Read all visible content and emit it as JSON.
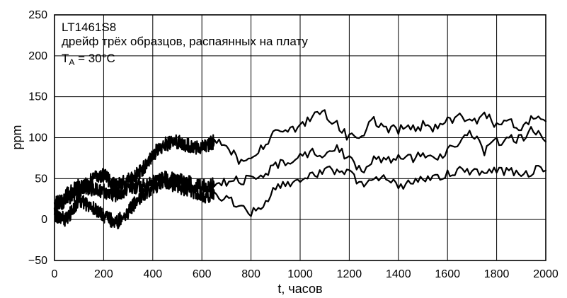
{
  "chart_data": {
    "type": "line",
    "annotations": {
      "line1": "LT1461S8",
      "line2": "дрейф трёх образцов, распаянных на плату",
      "line3_main": "T",
      "line3_sub": "A",
      "line3_rest": " = 30°C"
    },
    "xlabel": "t, часов",
    "ylabel": "ppm",
    "xlim": [
      0,
      2000
    ],
    "ylim": [
      -50,
      250
    ],
    "x_ticks": [
      0,
      200,
      400,
      600,
      800,
      1000,
      1200,
      1400,
      1600,
      1800,
      2000
    ],
    "y_ticks": [
      -50,
      0,
      50,
      100,
      150,
      200,
      250
    ],
    "x_tick_labels": [
      "0",
      "200",
      "400",
      "600",
      "800",
      "1000",
      "1200",
      "1400",
      "1600",
      "1800",
      "2000"
    ],
    "y_tick_labels": [
      "−50",
      "0",
      "50",
      "100",
      "150",
      "200",
      "250"
    ],
    "grid": true,
    "series": [
      {
        "x": [
          0,
          50,
          100,
          150,
          200,
          250,
          300,
          350,
          400,
          450,
          500,
          550,
          600,
          650,
          700,
          750,
          800,
          850,
          900,
          950,
          1000,
          1050,
          1100,
          1150,
          1200,
          1250,
          1300,
          1350,
          1400,
          1450,
          1500,
          1550,
          1600,
          1650,
          1700,
          1750,
          1800,
          1850,
          1900,
          1950,
          2000
        ],
        "y": [
          15,
          25,
          35,
          48,
          55,
          40,
          48,
          58,
          80,
          92,
          95,
          90,
          88,
          95,
          90,
          72,
          75,
          88,
          108,
          105,
          115,
          125,
          130,
          118,
          98,
          105,
          120,
          112,
          110,
          112,
          115,
          112,
          120,
          125,
          118,
          128,
          115,
          120,
          112,
          125,
          120
        ]
      },
      {
        "x": [
          0,
          50,
          100,
          150,
          200,
          250,
          300,
          350,
          400,
          450,
          500,
          550,
          600,
          650,
          700,
          750,
          800,
          850,
          900,
          950,
          1000,
          1050,
          1100,
          1150,
          1200,
          1250,
          1300,
          1350,
          1400,
          1450,
          1500,
          1550,
          1600,
          1650,
          1700,
          1750,
          1800,
          1850,
          1900,
          1950,
          2000
        ],
        "y": [
          20,
          30,
          42,
          38,
          35,
          30,
          38,
          42,
          45,
          50,
          48,
          45,
          40,
          42,
          45,
          48,
          50,
          55,
          65,
          72,
          75,
          85,
          80,
          90,
          72,
          60,
          75,
          72,
          78,
          75,
          80,
          70,
          82,
          95,
          105,
          82,
          95,
          98,
          100,
          110,
          95
        ]
      },
      {
        "x": [
          0,
          50,
          100,
          150,
          200,
          250,
          300,
          350,
          400,
          450,
          500,
          550,
          600,
          650,
          700,
          750,
          800,
          850,
          900,
          950,
          1000,
          1050,
          1100,
          1150,
          1200,
          1250,
          1300,
          1350,
          1400,
          1450,
          1500,
          1550,
          1600,
          1650,
          1700,
          1750,
          1800,
          1850,
          1900,
          1950,
          2000
        ],
        "y": [
          5,
          0,
          25,
          15,
          5,
          -5,
          10,
          28,
          40,
          45,
          42,
          35,
          30,
          28,
          25,
          18,
          10,
          20,
          40,
          42,
          48,
          55,
          58,
          62,
          55,
          45,
          50,
          48,
          42,
          45,
          52,
          50,
          55,
          60,
          58,
          55,
          62,
          58,
          55,
          60,
          60
        ]
      }
    ]
  }
}
